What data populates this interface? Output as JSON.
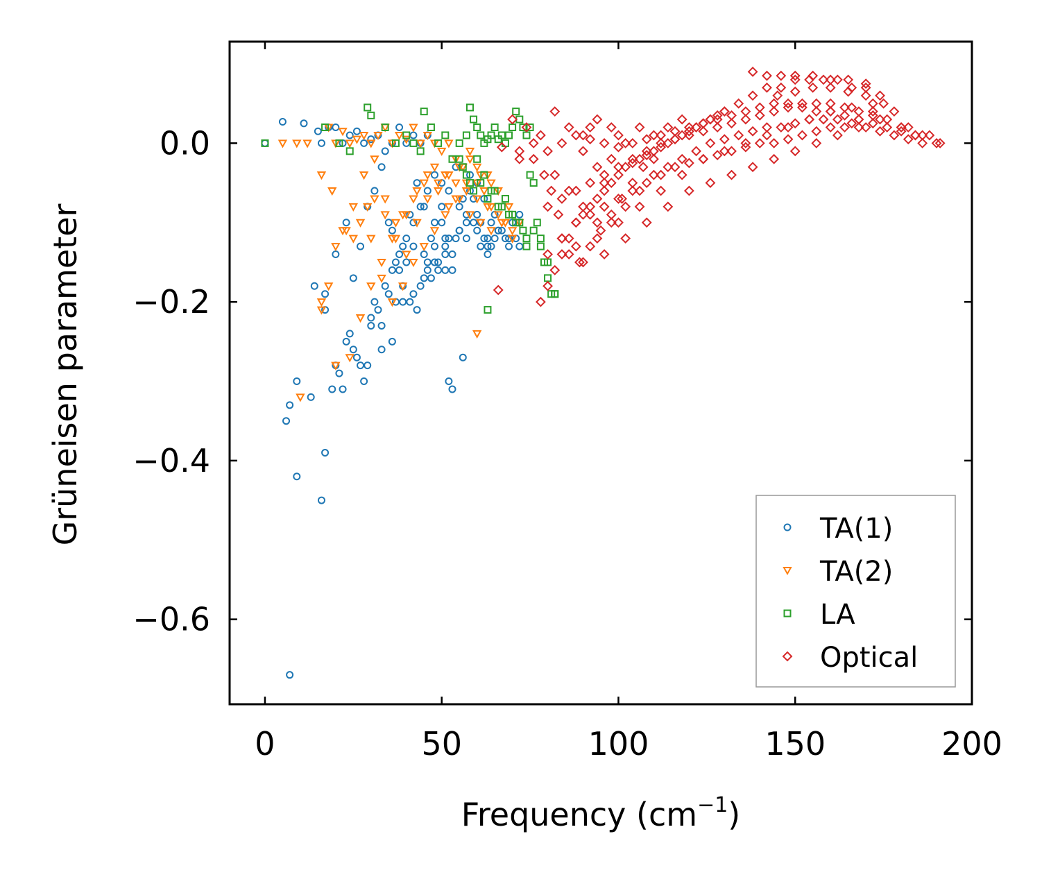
{
  "chart_data": {
    "type": "scatter",
    "title": "",
    "xlabel": "Frequency (cm",
    "xlabel_sup": "−1",
    "xlabel_tail": ")",
    "ylabel": "Grüneisen parameter",
    "xlim": [
      -10,
      200
    ],
    "ylim": [
      -0.707,
      0.128
    ],
    "x_ticks": [
      0,
      50,
      100,
      150,
      200
    ],
    "x_tick_labels": [
      "0",
      "50",
      "100",
      "150",
      "200"
    ],
    "y_ticks": [
      0.0,
      -0.2,
      -0.4,
      -0.6
    ],
    "y_tick_labels": [
      "0.0",
      "−0.2",
      "−0.4",
      "−0.6"
    ],
    "grid": false,
    "legend_position": "lower-right",
    "series": [
      {
        "name": "TA(1)",
        "marker": "circle",
        "color": "#1f77b4",
        "x": [
          0,
          5,
          11,
          15,
          16,
          18,
          20,
          22,
          24,
          26,
          28,
          30,
          32,
          34,
          36,
          38,
          40,
          42,
          44,
          46,
          48,
          50,
          52,
          54,
          56,
          58,
          60,
          62,
          64,
          66,
          68,
          70,
          72,
          14,
          17,
          20,
          23,
          25,
          27,
          29,
          31,
          33,
          35,
          37,
          39,
          41,
          43,
          45,
          47,
          49,
          51,
          53,
          55,
          57,
          59,
          61,
          63,
          65,
          67,
          69,
          71,
          30,
          33,
          36,
          39,
          42,
          45,
          48,
          51,
          54,
          57,
          60,
          63,
          66,
          69,
          72,
          7,
          9,
          13,
          16,
          17,
          20,
          22,
          24,
          26,
          28,
          30,
          32,
          34,
          36,
          38,
          40,
          42,
          44,
          46,
          6,
          9,
          7,
          53,
          56,
          52,
          45,
          48,
          50,
          52,
          47,
          49,
          51,
          53,
          55,
          57,
          59,
          61,
          63,
          65,
          41,
          43,
          44,
          46,
          38,
          40,
          42,
          36,
          35,
          37,
          39,
          33,
          31,
          29,
          27,
          25,
          23,
          21,
          19,
          17,
          55,
          58,
          60,
          62,
          64,
          50,
          51,
          48,
          46
        ],
        "y": [
          0.0,
          0.027,
          0.025,
          0.015,
          0.0,
          0.02,
          0.02,
          0.0,
          0.01,
          0.015,
          0.0,
          0.005,
          0.01,
          -0.01,
          0.0,
          0.02,
          0.0,
          0.01,
          0.0,
          0.01,
          -0.04,
          -0.05,
          -0.06,
          -0.03,
          -0.07,
          -0.04,
          -0.09,
          -0.12,
          -0.1,
          -0.11,
          -0.12,
          -0.1,
          -0.09,
          -0.18,
          -0.19,
          -0.14,
          -0.1,
          -0.17,
          -0.13,
          -0.08,
          -0.06,
          -0.03,
          -0.1,
          -0.15,
          -0.13,
          -0.09,
          -0.05,
          -0.08,
          -0.12,
          -0.15,
          -0.14,
          -0.16,
          -0.11,
          -0.12,
          -0.1,
          -0.13,
          -0.14,
          -0.12,
          -0.11,
          -0.13,
          -0.12,
          -0.22,
          -0.26,
          -0.25,
          -0.2,
          -0.19,
          -0.17,
          -0.15,
          -0.13,
          -0.12,
          -0.1,
          -0.11,
          -0.13,
          -0.11,
          -0.12,
          -0.13,
          -0.33,
          -0.42,
          -0.32,
          -0.45,
          -0.39,
          -0.28,
          -0.31,
          -0.24,
          -0.27,
          -0.3,
          -0.23,
          -0.21,
          -0.18,
          -0.16,
          -0.14,
          -0.12,
          -0.1,
          -0.08,
          -0.06,
          -0.35,
          -0.3,
          -0.67,
          -0.31,
          -0.27,
          -0.3,
          -0.14,
          -0.1,
          -0.08,
          -0.12,
          -0.17,
          -0.16,
          -0.12,
          -0.14,
          -0.11,
          -0.09,
          -0.07,
          -0.1,
          -0.12,
          -0.09,
          -0.2,
          -0.21,
          -0.18,
          -0.16,
          -0.16,
          -0.15,
          -0.13,
          -0.11,
          -0.19,
          -0.2,
          -0.18,
          -0.23,
          -0.2,
          -0.28,
          -0.28,
          -0.26,
          -0.25,
          -0.29,
          -0.31,
          -0.21,
          -0.08,
          -0.06,
          -0.05,
          -0.07,
          -0.13,
          -0.1,
          -0.16,
          -0.13,
          -0.15
        ]
      },
      {
        "name": "TA(2)",
        "marker": "triangle-down",
        "color": "#ff7f0e",
        "x": [
          5,
          9,
          12,
          16,
          18,
          20,
          22,
          24,
          26,
          28,
          30,
          32,
          34,
          36,
          38,
          40,
          42,
          44,
          46,
          48,
          50,
          52,
          54,
          56,
          58,
          60,
          62,
          64,
          66,
          68,
          70,
          72,
          16,
          19,
          22,
          25,
          28,
          31,
          34,
          37,
          40,
          43,
          46,
          49,
          52,
          55,
          58,
          61,
          64,
          67,
          70,
          10,
          16,
          20,
          24,
          27,
          30,
          33,
          36,
          39,
          42,
          45,
          48,
          51,
          54,
          57,
          60,
          63,
          30,
          33,
          36,
          39,
          42,
          45,
          48,
          51,
          54,
          57,
          60,
          63,
          66,
          69,
          60,
          18,
          20,
          23,
          25,
          27,
          29,
          31,
          34,
          37,
          40,
          43,
          46,
          49,
          52,
          55,
          58,
          61,
          64
        ],
        "y": [
          0.0,
          0.0,
          0.0,
          -0.04,
          0.02,
          0.0,
          0.015,
          0.0,
          0.005,
          0.01,
          0.0,
          0.01,
          0.02,
          0.0,
          0.01,
          0.005,
          0.02,
          0.0,
          0.01,
          0.0,
          -0.01,
          0.0,
          -0.02,
          -0.03,
          -0.01,
          -0.05,
          -0.06,
          -0.08,
          -0.09,
          -0.1,
          -0.11,
          -0.1,
          -0.2,
          -0.06,
          -0.11,
          -0.08,
          -0.04,
          -0.02,
          -0.07,
          -0.1,
          -0.09,
          -0.06,
          -0.04,
          -0.06,
          -0.08,
          -0.07,
          -0.09,
          -0.1,
          -0.11,
          -0.1,
          -0.12,
          -0.32,
          -0.21,
          -0.28,
          -0.27,
          -0.22,
          -0.18,
          -0.15,
          -0.12,
          -0.09,
          -0.07,
          -0.05,
          -0.03,
          -0.04,
          -0.05,
          -0.06,
          -0.07,
          -0.08,
          -0.12,
          -0.17,
          -0.2,
          -0.18,
          -0.15,
          -0.13,
          -0.11,
          -0.09,
          -0.07,
          -0.05,
          -0.03,
          -0.04,
          -0.06,
          -0.08,
          -0.24,
          -0.18,
          -0.13,
          -0.11,
          -0.12,
          -0.1,
          -0.08,
          -0.07,
          -0.09,
          -0.12,
          -0.14,
          -0.1,
          -0.07,
          -0.05,
          -0.04,
          -0.03,
          -0.02,
          -0.04,
          -0.05
        ]
      },
      {
        "name": "LA",
        "marker": "square",
        "color": "#2ca02c",
        "x": [
          0,
          17,
          21,
          24,
          29,
          30,
          34,
          37,
          40,
          42,
          44,
          45,
          47,
          49,
          51,
          53,
          55,
          57,
          58,
          59,
          60,
          61,
          62,
          63,
          64,
          65,
          66,
          67,
          68,
          69,
          70,
          71,
          72,
          73,
          74,
          75,
          76,
          77,
          78,
          79,
          80,
          81,
          82,
          55,
          57,
          59,
          61,
          63,
          65,
          67,
          69,
          71,
          73,
          56,
          58,
          60,
          62,
          64,
          66,
          68,
          70,
          72,
          74,
          76,
          78,
          80,
          82,
          63,
          74,
          75
        ],
        "y": [
          0.0,
          0.02,
          0.0,
          -0.01,
          0.045,
          0.035,
          0.02,
          0.0,
          0.01,
          0.0,
          -0.01,
          0.04,
          0.02,
          0.0,
          0.01,
          -0.02,
          0.0,
          0.01,
          0.045,
          0.03,
          0.02,
          0.01,
          0.0,
          0.005,
          0.01,
          0.02,
          0.005,
          0.01,
          0.0,
          0.01,
          0.02,
          0.04,
          0.03,
          0.02,
          0.01,
          0.02,
          -0.05,
          -0.1,
          -0.12,
          -0.15,
          -0.17,
          -0.19,
          -0.19,
          -0.02,
          -0.04,
          -0.06,
          -0.05,
          -0.07,
          -0.06,
          -0.08,
          -0.09,
          -0.1,
          -0.11,
          -0.03,
          -0.05,
          -0.02,
          -0.04,
          -0.06,
          -0.08,
          -0.07,
          -0.09,
          -0.1,
          -0.12,
          -0.11,
          -0.13,
          -0.15,
          -0.19,
          -0.21,
          -0.13,
          -0.04
        ]
      },
      {
        "name": "Optical",
        "marker": "diamond",
        "color": "#d62728",
        "x": [
          66,
          70,
          74,
          78,
          82,
          86,
          90,
          94,
          98,
          102,
          106,
          110,
          114,
          118,
          122,
          126,
          130,
          134,
          138,
          142,
          146,
          150,
          154,
          158,
          162,
          166,
          170,
          174,
          178,
          182,
          186,
          190,
          191,
          188,
          184,
          180,
          176,
          172,
          168,
          164,
          160,
          156,
          152,
          148,
          144,
          140,
          136,
          132,
          128,
          124,
          120,
          116,
          112,
          108,
          104,
          100,
          96,
          92,
          88,
          84,
          80,
          76,
          72,
          138,
          142,
          146,
          150,
          155,
          160,
          165,
          170,
          145,
          150,
          155,
          160,
          165,
          170,
          175,
          172,
          168,
          164,
          160,
          156,
          152,
          148,
          144,
          140,
          136,
          132,
          128,
          124,
          120,
          116,
          112,
          108,
          104,
          100,
          96,
          92,
          88,
          84,
          80,
          78,
          80,
          82,
          84,
          86,
          88,
          90,
          92,
          94,
          96,
          98,
          100,
          102,
          104,
          106,
          108,
          110,
          112,
          114,
          116,
          118,
          120,
          122,
          124,
          126,
          128,
          130,
          80,
          84,
          88,
          92,
          96,
          100,
          104,
          108,
          112,
          116,
          120,
          124,
          128,
          132,
          136,
          140,
          144,
          148,
          152,
          156,
          160,
          164,
          168,
          172,
          176,
          180,
          184,
          88,
          94,
          100,
          106,
          112,
          118,
          124,
          130,
          136,
          142,
          148,
          154,
          160,
          166,
          172,
          90,
          96,
          102,
          108,
          114,
          120,
          126,
          132,
          138,
          144,
          150,
          156,
          162,
          168,
          174,
          180,
          67,
          72,
          76,
          79,
          81,
          83,
          84,
          86,
          89,
          92,
          95,
          98,
          101,
          104,
          107,
          110,
          82,
          86,
          90,
          94,
          98,
          102,
          106,
          110,
          114,
          118,
          122,
          126,
          130,
          134,
          138,
          142,
          146,
          150,
          154,
          158,
          162,
          166,
          170,
          174,
          178,
          182,
          186,
          90,
          92,
          94,
          96,
          98,
          100
        ],
        "y": [
          -0.185,
          0.03,
          0.02,
          0.01,
          0.04,
          0.02,
          0.01,
          0.03,
          0.02,
          0.0,
          0.02,
          0.01,
          0.02,
          0.03,
          0.02,
          0.03,
          0.04,
          0.05,
          0.06,
          0.07,
          0.07,
          0.08,
          0.08,
          0.08,
          0.08,
          0.07,
          0.07,
          0.06,
          0.04,
          0.02,
          0.01,
          0.0,
          0.0,
          0.01,
          0.01,
          0.015,
          0.02,
          0.025,
          0.03,
          0.035,
          0.04,
          0.04,
          0.045,
          0.05,
          0.05,
          0.045,
          0.04,
          0.035,
          0.03,
          0.025,
          0.02,
          0.015,
          0.01,
          0.005,
          0.0,
          -0.005,
          0.0,
          0.005,
          0.01,
          0.0,
          -0.01,
          0.0,
          -0.02,
          0.09,
          0.085,
          0.085,
          0.085,
          0.085,
          0.08,
          0.08,
          0.075,
          0.06,
          0.065,
          0.07,
          0.07,
          0.065,
          0.06,
          0.05,
          0.04,
          0.03,
          0.02,
          0.02,
          0.015,
          0.01,
          0.005,
          0.0,
          0.0,
          -0.005,
          -0.01,
          -0.015,
          -0.02,
          -0.025,
          -0.03,
          -0.04,
          -0.05,
          -0.06,
          -0.07,
          -0.08,
          -0.09,
          -0.1,
          -0.12,
          -0.14,
          -0.2,
          -0.18,
          -0.16,
          -0.14,
          -0.12,
          -0.1,
          -0.09,
          -0.08,
          -0.07,
          -0.06,
          -0.05,
          -0.04,
          -0.03,
          -0.025,
          -0.02,
          -0.015,
          -0.01,
          -0.005,
          0.0,
          0.005,
          0.01,
          0.015,
          0.02,
          0.025,
          0.03,
          0.035,
          0.04,
          -0.08,
          -0.07,
          -0.06,
          -0.05,
          -0.04,
          -0.03,
          -0.02,
          -0.01,
          0.0,
          0.005,
          0.01,
          0.015,
          0.02,
          0.025,
          0.03,
          0.035,
          0.04,
          0.045,
          0.05,
          0.05,
          0.05,
          0.045,
          0.04,
          0.035,
          0.03,
          0.02,
          0.01,
          -0.13,
          -0.12,
          -0.1,
          -0.08,
          -0.06,
          -0.04,
          -0.02,
          -0.01,
          0.0,
          0.01,
          0.02,
          0.03,
          0.04,
          0.045,
          0.05,
          -0.15,
          -0.14,
          -0.12,
          -0.1,
          -0.08,
          -0.06,
          -0.05,
          -0.04,
          -0.03,
          -0.02,
          -0.01,
          0.0,
          0.01,
          0.02,
          0.03,
          0.02,
          -0.005,
          -0.01,
          -0.02,
          -0.04,
          -0.06,
          -0.09,
          -0.12,
          -0.14,
          -0.15,
          -0.13,
          -0.11,
          -0.09,
          -0.07,
          -0.05,
          -0.03,
          -0.02,
          -0.04,
          -0.06,
          -0.08,
          -0.1,
          -0.1,
          -0.08,
          -0.06,
          -0.04,
          -0.03,
          -0.02,
          -0.01,
          0.0,
          0.005,
          0.01,
          0.015,
          0.02,
          0.02,
          0.025,
          0.03,
          0.03,
          0.03,
          0.025,
          0.02,
          0.015,
          0.01,
          0.005,
          0.0,
          -0.01,
          0.02,
          -0.03,
          -0.05,
          -0.02,
          0.01
        ]
      }
    ]
  }
}
